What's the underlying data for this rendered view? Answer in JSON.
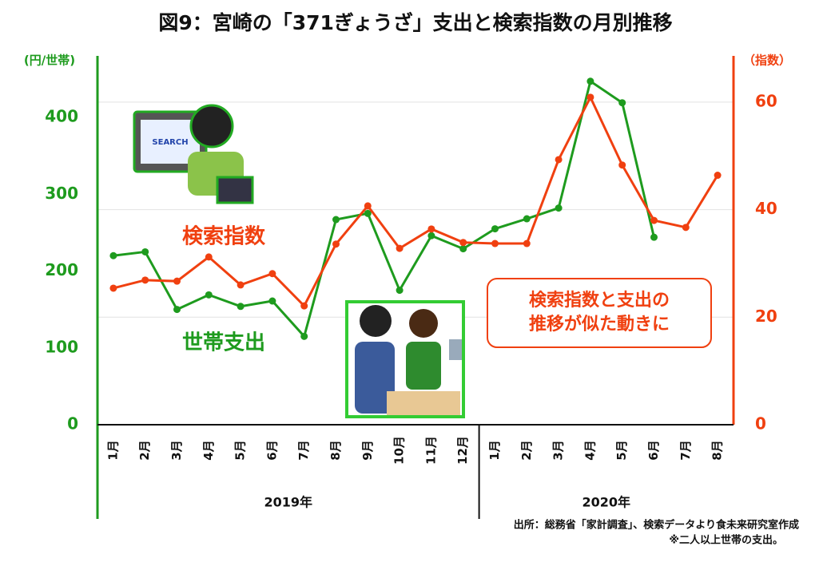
{
  "chart_data": {
    "type": "line",
    "title": "図9：宮崎の「371ぎょうざ」支出と検索指数の月別推移",
    "y_label": "(円/世帯)",
    "y2_label": "（指数）",
    "categories": [
      "1月",
      "2月",
      "3月",
      "4月",
      "5月",
      "6月",
      "7月",
      "8月",
      "9月",
      "10月",
      "11月",
      "12月",
      "1月",
      "2月",
      "3月",
      "4月",
      "5月",
      "6月",
      "7月",
      "8月"
    ],
    "years": [
      "2019年",
      "2020年"
    ],
    "series": [
      {
        "name": "世帯支出",
        "color": "#1e9b1e",
        "values": [
          220,
          225,
          150,
          169,
          154,
          161,
          115,
          267,
          275,
          175,
          246,
          229,
          255,
          268,
          282,
          447,
          419,
          244,
          null,
          null
        ]
      },
      {
        "name": "検索指数",
        "color": "#f04010",
        "axis": "y2",
        "values": [
          25.4,
          26.9,
          26.7,
          31.2,
          26,
          28.1,
          22.1,
          33.6,
          40.7,
          32.8,
          36.4,
          33.9,
          33.7,
          33.7,
          49.3,
          60.9,
          48.3,
          38,
          36.7,
          46.4
        ]
      }
    ],
    "ylim": [
      0,
      480
    ],
    "yticks": [
      0,
      100,
      200,
      300,
      400
    ],
    "y2lim": [
      0,
      68.6
    ],
    "y2ticks": [
      0,
      20,
      40,
      60
    ],
    "grid": true,
    "annotation": [
      "検索指数と支出の",
      "推移が似た動きに"
    ],
    "source": "出所：総務省「家計調査」、検索データより食未来研究室作成",
    "note": "※二人以上世帯の支出。"
  }
}
